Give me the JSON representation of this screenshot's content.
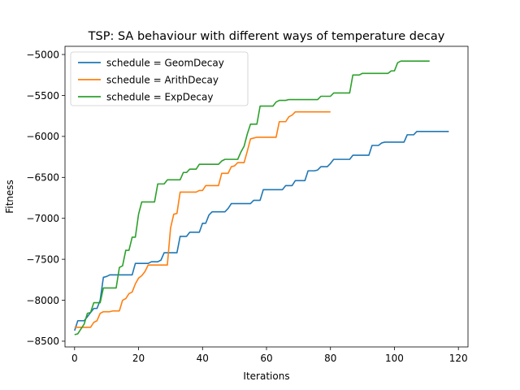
{
  "chart_data": {
    "type": "line",
    "title": "TSP: SA behaviour with different ways of temperature decay",
    "xlabel": "Iterations",
    "ylabel": "Fitness",
    "xlim": [
      -3,
      123
    ],
    "ylim": [
      -8570,
      -4900
    ],
    "xticks": [
      0,
      20,
      40,
      60,
      80,
      100,
      120
    ],
    "yticks": [
      -8500,
      -8000,
      -7500,
      -7000,
      -6500,
      -6000,
      -5500,
      -5000
    ],
    "grid": false,
    "legend_position": "upper-left",
    "series": [
      {
        "name": "schedule = GeomDecay",
        "color": "#1f77b4",
        "points": [
          [
            0,
            -8370
          ],
          [
            1,
            -8250
          ],
          [
            3,
            -8250
          ],
          [
            4,
            -8200
          ],
          [
            5,
            -8150
          ],
          [
            6,
            -8100
          ],
          [
            7,
            -8100
          ],
          [
            8,
            -8000
          ],
          [
            9,
            -7720
          ],
          [
            10,
            -7710
          ],
          [
            11,
            -7690
          ],
          [
            14,
            -7690
          ],
          [
            15,
            -7690
          ],
          [
            18,
            -7690
          ],
          [
            19,
            -7550
          ],
          [
            23,
            -7550
          ],
          [
            24,
            -7530
          ],
          [
            26,
            -7530
          ],
          [
            27,
            -7510
          ],
          [
            28,
            -7420
          ],
          [
            32,
            -7420
          ],
          [
            33,
            -7220
          ],
          [
            35,
            -7220
          ],
          [
            36,
            -7170
          ],
          [
            39,
            -7170
          ],
          [
            40,
            -7060
          ],
          [
            41,
            -7060
          ],
          [
            42,
            -6960
          ],
          [
            43,
            -6920
          ],
          [
            47,
            -6920
          ],
          [
            48,
            -6880
          ],
          [
            49,
            -6820
          ],
          [
            55,
            -6820
          ],
          [
            56,
            -6780
          ],
          [
            58,
            -6780
          ],
          [
            59,
            -6650
          ],
          [
            65,
            -6650
          ],
          [
            66,
            -6600
          ],
          [
            68,
            -6600
          ],
          [
            69,
            -6540
          ],
          [
            72,
            -6540
          ],
          [
            73,
            -6420
          ],
          [
            75,
            -6420
          ],
          [
            76,
            -6410
          ],
          [
            77,
            -6370
          ],
          [
            79,
            -6370
          ],
          [
            80,
            -6330
          ],
          [
            81,
            -6280
          ],
          [
            86,
            -6280
          ],
          [
            87,
            -6230
          ],
          [
            92,
            -6230
          ],
          [
            93,
            -6110
          ],
          [
            95,
            -6110
          ],
          [
            96,
            -6080
          ],
          [
            97,
            -6070
          ],
          [
            103,
            -6070
          ],
          [
            104,
            -5980
          ],
          [
            106,
            -5980
          ],
          [
            107,
            -5940
          ],
          [
            117,
            -5940
          ]
        ]
      },
      {
        "name": "schedule = ArithDecay",
        "color": "#ff7f0e",
        "points": [
          [
            0,
            -8330
          ],
          [
            5,
            -8330
          ],
          [
            6,
            -8270
          ],
          [
            7,
            -8250
          ],
          [
            8,
            -8160
          ],
          [
            9,
            -8140
          ],
          [
            11,
            -8140
          ],
          [
            12,
            -8130
          ],
          [
            14,
            -8130
          ],
          [
            15,
            -8000
          ],
          [
            16,
            -7980
          ],
          [
            17,
            -7920
          ],
          [
            18,
            -7900
          ],
          [
            19,
            -7800
          ],
          [
            20,
            -7730
          ],
          [
            21,
            -7700
          ],
          [
            22,
            -7650
          ],
          [
            23,
            -7570
          ],
          [
            29,
            -7570
          ],
          [
            30,
            -7120
          ],
          [
            31,
            -6950
          ],
          [
            32,
            -6940
          ],
          [
            33,
            -6680
          ],
          [
            38,
            -6680
          ],
          [
            39,
            -6660
          ],
          [
            40,
            -6660
          ],
          [
            41,
            -6600
          ],
          [
            45,
            -6600
          ],
          [
            46,
            -6450
          ],
          [
            48,
            -6450
          ],
          [
            49,
            -6370
          ],
          [
            50,
            -6360
          ],
          [
            51,
            -6320
          ],
          [
            53,
            -6320
          ],
          [
            54,
            -6180
          ],
          [
            55,
            -6030
          ],
          [
            56,
            -6020
          ],
          [
            57,
            -6010
          ],
          [
            63,
            -6010
          ],
          [
            64,
            -5820
          ],
          [
            66,
            -5820
          ],
          [
            67,
            -5760
          ],
          [
            68,
            -5740
          ],
          [
            69,
            -5700
          ],
          [
            80,
            -5700
          ]
        ]
      },
      {
        "name": "schedule = ExpDecay",
        "color": "#2ca02c",
        "points": [
          [
            0,
            -8420
          ],
          [
            1,
            -8410
          ],
          [
            2,
            -8350
          ],
          [
            3,
            -8290
          ],
          [
            4,
            -8160
          ],
          [
            5,
            -8150
          ],
          [
            6,
            -8030
          ],
          [
            8,
            -8030
          ],
          [
            9,
            -7850
          ],
          [
            13,
            -7850
          ],
          [
            14,
            -7600
          ],
          [
            15,
            -7580
          ],
          [
            16,
            -7390
          ],
          [
            17,
            -7390
          ],
          [
            18,
            -7230
          ],
          [
            19,
            -7230
          ],
          [
            20,
            -6950
          ],
          [
            21,
            -6800
          ],
          [
            25,
            -6800
          ],
          [
            26,
            -6580
          ],
          [
            28,
            -6580
          ],
          [
            29,
            -6530
          ],
          [
            33,
            -6530
          ],
          [
            34,
            -6440
          ],
          [
            35,
            -6440
          ],
          [
            36,
            -6400
          ],
          [
            38,
            -6400
          ],
          [
            39,
            -6340
          ],
          [
            45,
            -6340
          ],
          [
            46,
            -6300
          ],
          [
            47,
            -6280
          ],
          [
            51,
            -6280
          ],
          [
            52,
            -6190
          ],
          [
            53,
            -6120
          ],
          [
            54,
            -5970
          ],
          [
            55,
            -5850
          ],
          [
            57,
            -5850
          ],
          [
            58,
            -5630
          ],
          [
            62,
            -5630
          ],
          [
            63,
            -5580
          ],
          [
            64,
            -5560
          ],
          [
            66,
            -5560
          ],
          [
            67,
            -5550
          ],
          [
            76,
            -5550
          ],
          [
            77,
            -5510
          ],
          [
            80,
            -5510
          ],
          [
            81,
            -5470
          ],
          [
            86,
            -5470
          ],
          [
            87,
            -5250
          ],
          [
            89,
            -5250
          ],
          [
            90,
            -5230
          ],
          [
            98,
            -5230
          ],
          [
            99,
            -5200
          ],
          [
            100,
            -5200
          ],
          [
            101,
            -5100
          ],
          [
            102,
            -5080
          ],
          [
            111,
            -5080
          ]
        ]
      }
    ]
  }
}
